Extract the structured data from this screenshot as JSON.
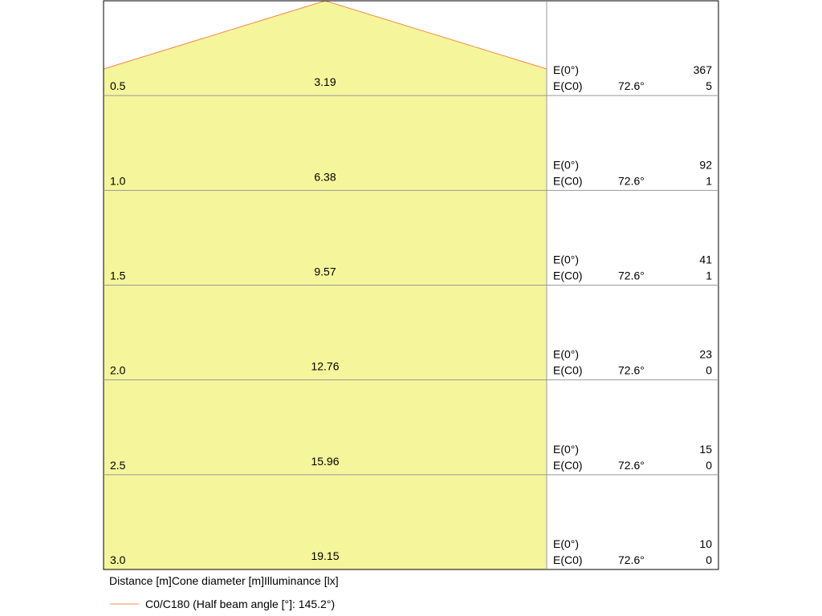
{
  "header": {
    "distance": "Distance [m]",
    "diameter": "Cone diameter [m]",
    "illuminance": "Illuminance [lx]"
  },
  "legend": {
    "label": "C0/C180 (Half beam angle [°]: 145.2°)"
  },
  "rows": [
    {
      "distance": "0.5",
      "diameter": "3.19",
      "e0_label": "E(0°)",
      "e0": "367",
      "ec0_label": "E(C0)",
      "angle": "72.6°",
      "ec0": "5"
    },
    {
      "distance": "1.0",
      "diameter": "6.38",
      "e0_label": "E(0°)",
      "e0": "92",
      "ec0_label": "E(C0)",
      "angle": "72.6°",
      "ec0": "1"
    },
    {
      "distance": "1.5",
      "diameter": "9.57",
      "e0_label": "E(0°)",
      "e0": "41",
      "ec0_label": "E(C0)",
      "angle": "72.6°",
      "ec0": "1"
    },
    {
      "distance": "2.0",
      "diameter": "12.76",
      "e0_label": "E(0°)",
      "e0": "23",
      "ec0_label": "E(C0)",
      "angle": "72.6°",
      "ec0": "0"
    },
    {
      "distance": "2.5",
      "diameter": "15.96",
      "e0_label": "E(0°)",
      "e0": "15",
      "ec0_label": "E(C0)",
      "angle": "72.6°",
      "ec0": "0"
    },
    {
      "distance": "3.0",
      "diameter": "19.15",
      "e0_label": "E(0°)",
      "e0": "10",
      "ec0_label": "E(C0)",
      "angle": "72.6°",
      "ec0": "0"
    }
  ]
}
